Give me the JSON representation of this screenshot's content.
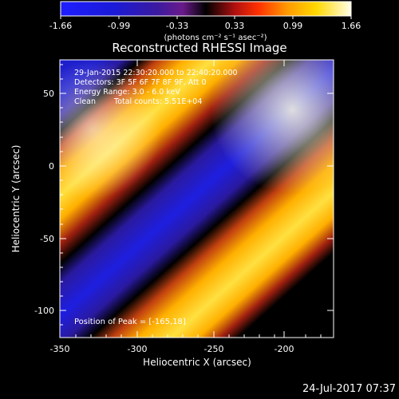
{
  "colorbar": {
    "ticks": [
      "-1.66",
      "-0.99",
      "-0.33",
      "0.33",
      "0.99",
      "1.66"
    ],
    "units": "(photons cm⁻² s⁻¹ asec⁻²)",
    "min": -1.66,
    "max": 1.66
  },
  "image": {
    "title": "Reconstructed RHESSI Image",
    "time_range": "29-Jan-2015 22:30:20.000 to 22:40:20.000",
    "detectors": "Detectors: 3F 5F 6F 7F 8F 9F, Att 0",
    "energy_range": "Energy Range: 3.0 - 6.0 keV",
    "method": "Clean",
    "total_counts": "Total counts: 5.51E+04",
    "peak_position": "Position of Peak = [-165,18]"
  },
  "axes": {
    "xlabel": "Heliocentric X (arcsec)",
    "ylabel": "Heliocentric Y (arcsec)",
    "xticks": [
      "-350",
      "-300",
      "-250",
      "-200"
    ],
    "yticks": [
      "50",
      "0",
      "-50",
      "-100"
    ],
    "xrange": [
      -350,
      -165
    ],
    "yrange": [
      -120,
      88
    ]
  },
  "footer": {
    "timestamp": "24-Jul-2017 07:37"
  },
  "colors": {
    "background": "#000000",
    "foreground": "#ffffff"
  }
}
